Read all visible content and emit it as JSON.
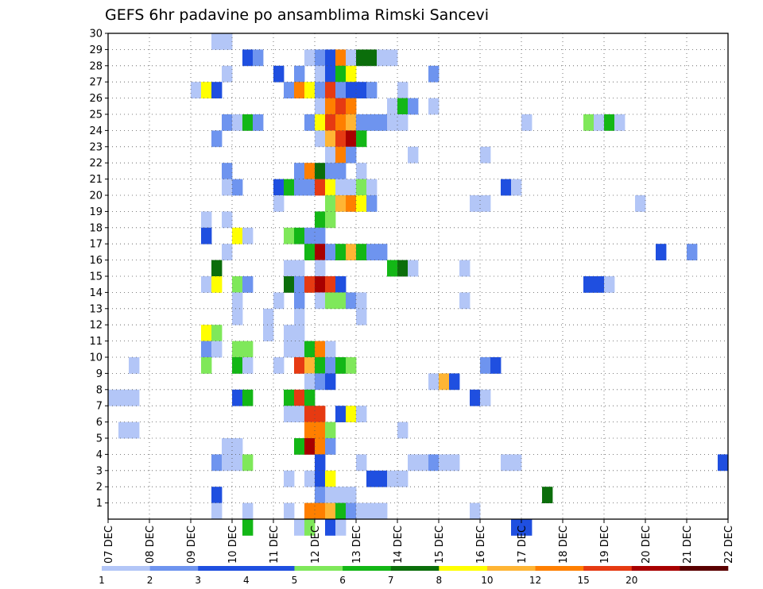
{
  "chart_data": {
    "type": "heatmap",
    "title": "GEFS 6hr padavine po ansamblima Rimski Sancevi",
    "xlabel": "",
    "ylabel": "",
    "x_ticks": [
      "07 DEC",
      "08 DEC",
      "09 DEC",
      "10 DEC",
      "11 DEC",
      "12 DEC",
      "13 DEC",
      "14 DEC",
      "15 DEC",
      "16 DEC",
      "17 DEC",
      "18 DEC",
      "19 DEC",
      "20 DEC",
      "21 DEC",
      "22 DEC"
    ],
    "y_ticks": [
      "1",
      "2",
      "3",
      "4",
      "5",
      "6",
      "7",
      "8",
      "9",
      "10",
      "11",
      "12",
      "13",
      "14",
      "15",
      "16",
      "17",
      "18",
      "19",
      "20",
      "21",
      "22",
      "23",
      "24",
      "25",
      "26",
      "27",
      "28",
      "29",
      "30"
    ],
    "x_range_days": [
      0,
      15
    ],
    "y_range": [
      0,
      30
    ],
    "grid": true,
    "time_step_hours": 6,
    "color_bins": [
      {
        "label": "1",
        "color": "#b3c6f7"
      },
      {
        "label": "2",
        "color": "#6e94ef"
      },
      {
        "label": "3",
        "color": "#1f4fe0"
      },
      {
        "label": "4",
        "color": "#1f4fe0"
      },
      {
        "label": "5",
        "color": "#7fe85a"
      },
      {
        "label": "6",
        "color": "#13b716"
      },
      {
        "label": "7",
        "color": "#0b6e0b"
      },
      {
        "label": "8",
        "color": "#ffff00"
      },
      {
        "label": "10",
        "color": "#ffb534"
      },
      {
        "label": "12",
        "color": "#ff7f00"
      },
      {
        "label": "15",
        "color": "#e63a12"
      },
      {
        "label": "20",
        "color": "#a80000"
      },
      {
        "label": "",
        "color": "#5a0000"
      }
    ],
    "legend_labels": [
      "1",
      "2",
      "3",
      "4",
      "5",
      "6",
      "7",
      "8",
      "10",
      "12",
      "15",
      "20"
    ],
    "cells": [
      [
        30,
        10,
        0
      ],
      [
        30,
        11,
        0
      ],
      [
        29,
        13,
        2
      ],
      [
        29,
        14,
        1
      ],
      [
        29,
        19,
        0
      ],
      [
        29,
        20,
        1
      ],
      [
        29,
        21,
        3
      ],
      [
        29,
        22,
        9
      ],
      [
        29,
        23,
        0
      ],
      [
        29,
        24,
        6
      ],
      [
        29,
        25,
        6
      ],
      [
        29,
        26,
        0
      ],
      [
        29,
        27,
        0
      ],
      [
        28,
        11,
        0
      ],
      [
        28,
        16,
        2
      ],
      [
        28,
        18,
        1
      ],
      [
        28,
        20,
        0
      ],
      [
        28,
        21,
        3
      ],
      [
        28,
        22,
        5
      ],
      [
        28,
        23,
        7
      ],
      [
        28,
        31,
        1
      ],
      [
        27,
        8,
        0
      ],
      [
        27,
        9,
        7
      ],
      [
        27,
        10,
        2
      ],
      [
        27,
        17,
        1
      ],
      [
        27,
        18,
        9
      ],
      [
        27,
        19,
        7
      ],
      [
        27,
        20,
        1
      ],
      [
        27,
        21,
        10
      ],
      [
        27,
        22,
        1
      ],
      [
        27,
        23,
        2
      ],
      [
        27,
        24,
        2
      ],
      [
        27,
        25,
        1
      ],
      [
        27,
        28,
        0
      ],
      [
        26,
        20,
        0
      ],
      [
        26,
        21,
        9
      ],
      [
        26,
        22,
        10
      ],
      [
        26,
        23,
        9
      ],
      [
        26,
        27,
        0
      ],
      [
        26,
        28,
        5
      ],
      [
        26,
        29,
        1
      ],
      [
        26,
        31,
        0
      ],
      [
        25,
        11,
        1
      ],
      [
        25,
        12,
        0
      ],
      [
        25,
        13,
        5
      ],
      [
        25,
        14,
        1
      ],
      [
        25,
        19,
        1
      ],
      [
        25,
        20,
        7
      ],
      [
        25,
        21,
        10
      ],
      [
        25,
        22,
        9
      ],
      [
        25,
        23,
        8
      ],
      [
        25,
        24,
        1
      ],
      [
        25,
        25,
        1
      ],
      [
        25,
        26,
        1
      ],
      [
        25,
        27,
        0
      ],
      [
        25,
        28,
        0
      ],
      [
        25,
        40,
        0
      ],
      [
        25,
        46,
        4
      ],
      [
        25,
        47,
        0
      ],
      [
        25,
        48,
        5
      ],
      [
        25,
        49,
        0
      ],
      [
        24,
        10,
        1
      ],
      [
        24,
        20,
        0
      ],
      [
        24,
        21,
        8
      ],
      [
        24,
        22,
        10
      ],
      [
        24,
        23,
        11
      ],
      [
        24,
        24,
        5
      ],
      [
        23,
        21,
        0
      ],
      [
        23,
        22,
        9
      ],
      [
        23,
        23,
        1
      ],
      [
        23,
        29,
        0
      ],
      [
        23,
        36,
        0
      ],
      [
        22,
        11,
        1
      ],
      [
        22,
        18,
        1
      ],
      [
        22,
        19,
        9
      ],
      [
        22,
        20,
        6
      ],
      [
        22,
        21,
        1
      ],
      [
        22,
        22,
        1
      ],
      [
        22,
        24,
        0
      ],
      [
        21,
        11,
        0
      ],
      [
        21,
        12,
        1
      ],
      [
        21,
        16,
        2
      ],
      [
        21,
        17,
        5
      ],
      [
        21,
        18,
        1
      ],
      [
        21,
        19,
        1
      ],
      [
        21,
        20,
        10
      ],
      [
        21,
        21,
        7
      ],
      [
        21,
        22,
        0
      ],
      [
        21,
        23,
        0
      ],
      [
        21,
        24,
        4
      ],
      [
        21,
        25,
        0
      ],
      [
        21,
        38,
        2
      ],
      [
        21,
        39,
        0
      ],
      [
        20,
        16,
        0
      ],
      [
        20,
        21,
        4
      ],
      [
        20,
        22,
        8
      ],
      [
        20,
        23,
        9
      ],
      [
        20,
        24,
        7
      ],
      [
        20,
        25,
        1
      ],
      [
        20,
        35,
        0
      ],
      [
        20,
        36,
        0
      ],
      [
        20,
        51,
        0
      ],
      [
        19,
        9,
        0
      ],
      [
        19,
        11,
        0
      ],
      [
        19,
        20,
        5
      ],
      [
        19,
        21,
        4
      ],
      [
        18,
        9,
        2
      ],
      [
        18,
        12,
        7
      ],
      [
        18,
        13,
        0
      ],
      [
        18,
        17,
        4
      ],
      [
        18,
        18,
        5
      ],
      [
        18,
        19,
        1
      ],
      [
        18,
        20,
        1
      ],
      [
        17,
        11,
        0
      ],
      [
        17,
        19,
        5
      ],
      [
        17,
        20,
        11
      ],
      [
        17,
        21,
        1
      ],
      [
        17,
        22,
        5
      ],
      [
        17,
        23,
        8
      ],
      [
        17,
        24,
        5
      ],
      [
        17,
        25,
        1
      ],
      [
        17,
        26,
        1
      ],
      [
        17,
        53,
        2
      ],
      [
        17,
        56,
        1
      ],
      [
        16,
        10,
        6
      ],
      [
        16,
        17,
        0
      ],
      [
        16,
        18,
        0
      ],
      [
        16,
        20,
        0
      ],
      [
        16,
        27,
        5
      ],
      [
        16,
        28,
        6
      ],
      [
        16,
        29,
        0
      ],
      [
        16,
        34,
        0
      ],
      [
        15,
        9,
        0
      ],
      [
        15,
        10,
        7
      ],
      [
        15,
        12,
        4
      ],
      [
        15,
        13,
        1
      ],
      [
        15,
        17,
        6
      ],
      [
        15,
        18,
        1
      ],
      [
        15,
        19,
        10
      ],
      [
        15,
        20,
        11
      ],
      [
        15,
        21,
        10
      ],
      [
        15,
        22,
        2
      ],
      [
        15,
        46,
        2
      ],
      [
        15,
        47,
        2
      ],
      [
        15,
        48,
        0
      ],
      [
        14,
        12,
        0
      ],
      [
        14,
        16,
        0
      ],
      [
        14,
        18,
        1
      ],
      [
        14,
        20,
        0
      ],
      [
        14,
        21,
        4
      ],
      [
        14,
        22,
        4
      ],
      [
        14,
        23,
        1
      ],
      [
        14,
        24,
        0
      ],
      [
        14,
        34,
        0
      ],
      [
        13,
        12,
        0
      ],
      [
        13,
        15,
        0
      ],
      [
        13,
        18,
        0
      ],
      [
        13,
        24,
        0
      ],
      [
        12,
        9,
        7
      ],
      [
        12,
        10,
        4
      ],
      [
        12,
        15,
        0
      ],
      [
        12,
        17,
        0
      ],
      [
        12,
        18,
        0
      ],
      [
        11,
        9,
        1
      ],
      [
        11,
        10,
        0
      ],
      [
        11,
        12,
        4
      ],
      [
        11,
        13,
        4
      ],
      [
        11,
        17,
        0
      ],
      [
        11,
        18,
        0
      ],
      [
        11,
        19,
        5
      ],
      [
        11,
        20,
        9
      ],
      [
        11,
        21,
        0
      ],
      [
        10,
        2,
        0
      ],
      [
        10,
        9,
        4
      ],
      [
        10,
        12,
        5
      ],
      [
        10,
        13,
        0
      ],
      [
        10,
        16,
        0
      ],
      [
        10,
        18,
        10
      ],
      [
        10,
        19,
        8
      ],
      [
        10,
        20,
        5
      ],
      [
        10,
        21,
        1
      ],
      [
        10,
        22,
        5
      ],
      [
        10,
        23,
        4
      ],
      [
        10,
        36,
        1
      ],
      [
        10,
        37,
        2
      ],
      [
        9,
        19,
        0
      ],
      [
        9,
        20,
        1
      ],
      [
        9,
        21,
        2
      ],
      [
        9,
        31,
        0
      ],
      [
        9,
        32,
        8
      ],
      [
        9,
        33,
        2
      ],
      [
        8,
        0,
        0
      ],
      [
        8,
        1,
        0
      ],
      [
        8,
        2,
        0
      ],
      [
        8,
        12,
        2
      ],
      [
        8,
        13,
        5
      ],
      [
        8,
        17,
        5
      ],
      [
        8,
        18,
        10
      ],
      [
        8,
        19,
        5
      ],
      [
        8,
        35,
        2
      ],
      [
        8,
        36,
        0
      ],
      [
        7,
        17,
        0
      ],
      [
        7,
        18,
        0
      ],
      [
        7,
        19,
        10
      ],
      [
        7,
        20,
        10
      ],
      [
        7,
        22,
        2
      ],
      [
        7,
        23,
        7
      ],
      [
        7,
        24,
        0
      ],
      [
        6,
        1,
        0
      ],
      [
        6,
        2,
        0
      ],
      [
        6,
        19,
        9
      ],
      [
        6,
        20,
        9
      ],
      [
        6,
        21,
        4
      ],
      [
        6,
        28,
        0
      ],
      [
        5,
        11,
        0
      ],
      [
        5,
        12,
        0
      ],
      [
        5,
        18,
        5
      ],
      [
        5,
        19,
        11
      ],
      [
        5,
        20,
        9
      ],
      [
        5,
        21,
        1
      ],
      [
        4,
        10,
        1
      ],
      [
        4,
        11,
        0
      ],
      [
        4,
        12,
        0
      ],
      [
        4,
        13,
        4
      ],
      [
        4,
        20,
        2
      ],
      [
        4,
        24,
        0
      ],
      [
        4,
        29,
        0
      ],
      [
        4,
        30,
        0
      ],
      [
        4,
        31,
        1
      ],
      [
        4,
        32,
        0
      ],
      [
        4,
        33,
        0
      ],
      [
        4,
        38,
        0
      ],
      [
        4,
        39,
        0
      ],
      [
        4,
        59,
        2
      ],
      [
        3,
        17,
        0
      ],
      [
        3,
        19,
        0
      ],
      [
        3,
        20,
        2
      ],
      [
        3,
        21,
        7
      ],
      [
        3,
        25,
        2
      ],
      [
        3,
        26,
        2
      ],
      [
        3,
        27,
        0
      ],
      [
        3,
        28,
        0
      ],
      [
        2,
        10,
        2
      ],
      [
        2,
        20,
        1
      ],
      [
        2,
        21,
        0
      ],
      [
        2,
        22,
        0
      ],
      [
        2,
        23,
        0
      ],
      [
        2,
        42,
        6
      ],
      [
        1,
        10,
        0
      ],
      [
        1,
        13,
        0
      ],
      [
        1,
        17,
        0
      ],
      [
        1,
        19,
        9
      ],
      [
        1,
        20,
        9
      ],
      [
        1,
        21,
        8
      ],
      [
        1,
        22,
        5
      ],
      [
        1,
        23,
        1
      ],
      [
        1,
        24,
        0
      ],
      [
        1,
        25,
        0
      ],
      [
        1,
        26,
        0
      ],
      [
        1,
        35,
        0
      ],
      [
        0,
        13,
        5
      ],
      [
        0,
        18,
        0
      ],
      [
        0,
        19,
        4
      ],
      [
        0,
        21,
        2
      ],
      [
        0,
        22,
        0
      ],
      [
        0,
        39,
        2
      ],
      [
        0,
        40,
        2
      ]
    ]
  }
}
